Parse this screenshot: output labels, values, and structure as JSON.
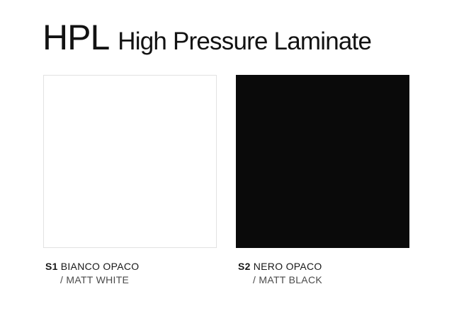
{
  "page": {
    "background": "#ffffff"
  },
  "header": {
    "title": "HPL",
    "subtitle": "High Pressure Laminate"
  },
  "swatches": [
    {
      "code": "S1",
      "name": "BIANCO OPACO",
      "name_en": "/ MATT WHITE",
      "color": "#ffffff",
      "border": "#e2e2e2"
    },
    {
      "code": "S2",
      "name": "NERO OPACO",
      "name_en": "/ MATT BLACK",
      "color": "#0a0a0a",
      "border": "#0a0a0a"
    }
  ]
}
